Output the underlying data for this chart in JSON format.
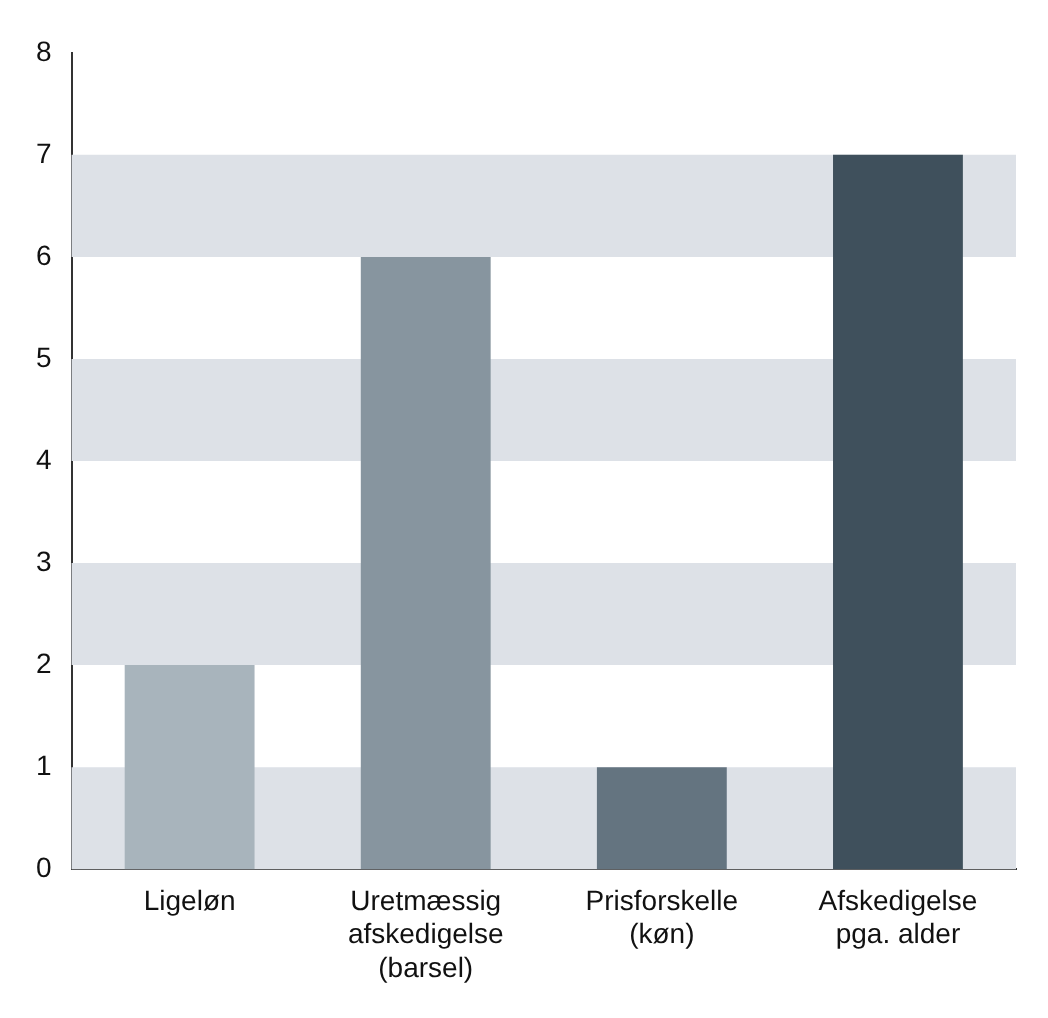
{
  "chart_data": {
    "type": "bar",
    "categories": [
      "Ligeløn",
      "Uretmæssig\nafskedigelse\n(barsel)",
      "Prisforskelle\n(køn)",
      "Afskedigelse\npga. alder"
    ],
    "values": [
      2,
      6,
      1,
      7
    ],
    "colors": [
      "#a8b4bc",
      "#87959f",
      "#647480",
      "#3f505c"
    ],
    "ylim": [
      0,
      8
    ],
    "yticks": [
      0,
      1,
      2,
      3,
      4,
      5,
      6,
      7,
      8
    ],
    "grid": false,
    "legend": false,
    "bands": [
      {
        "axis": "y",
        "from": 0,
        "to": 1,
        "color": "#dde1e7"
      },
      {
        "axis": "y",
        "from": 2,
        "to": 3,
        "color": "#dde1e7"
      },
      {
        "axis": "y",
        "from": 4,
        "to": 5,
        "color": "#dde1e7"
      },
      {
        "axis": "y",
        "from": 6,
        "to": 7,
        "color": "#dde1e7"
      }
    ]
  }
}
